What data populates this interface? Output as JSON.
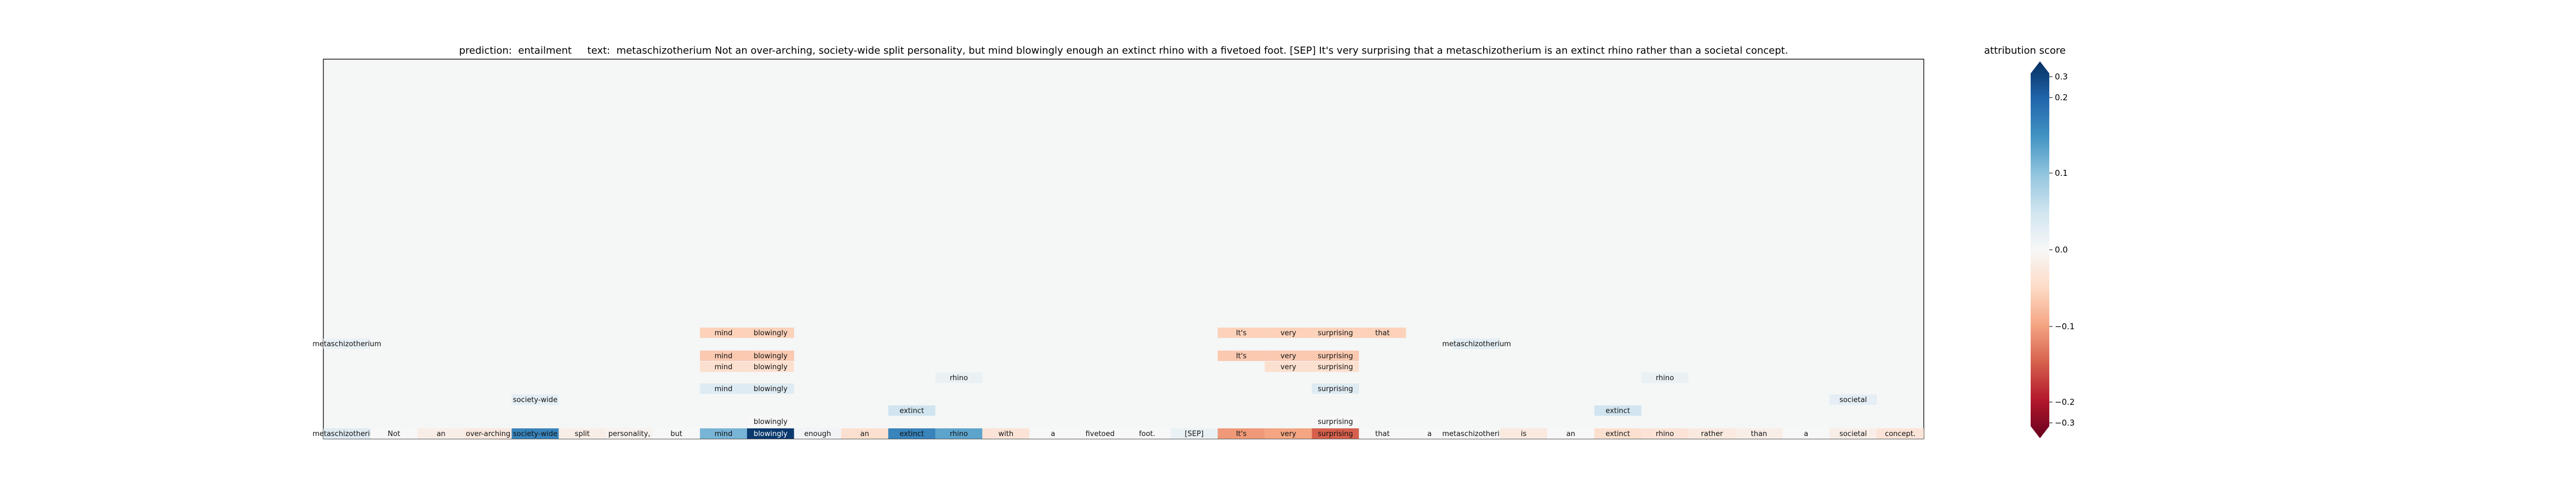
{
  "title": "prediction:  entailment     text:  metaschizotherium Not an over-arching, society-wide split personality, but mind blowingly enough an extinct rhino with a fivetoed foot. [SEP] It's very surprising that a metaschizotherium is an extinct rhino rather than a societal concept.",
  "colorbar": {
    "label": "attribution score",
    "ticks": [
      "0.3",
      "0.2",
      "0.1",
      "0.0",
      "−0.1",
      "−0.2",
      "−0.3"
    ],
    "min": -0.3,
    "max": 0.3,
    "colors_hex": [
      "#67001f",
      "#b2182b",
      "#d6604d",
      "#f4a582",
      "#fddbc7",
      "#f7f7f7",
      "#d1e5f0",
      "#92c5de",
      "#4393c3",
      "#2166ac",
      "#053061"
    ]
  },
  "chart_data": {
    "type": "heatmap",
    "title": "prediction:  entailment     text:  metaschizotherium Not an over-arching, society-wide split personality, but mind blowingly enough an extinct rhino with a fivetoed foot. [SEP] It's very surprising that a metaschizotherium is an extinct rhino rather than a societal concept.",
    "legend": "attribution score",
    "value_range": [
      -0.3,
      0.3
    ],
    "tokens": [
      {
        "text": "metaschizotherium",
        "value": 0.04
      },
      {
        "text": "Not",
        "value": 0.0
      },
      {
        "text": "an",
        "value": -0.02
      },
      {
        "text": "over-arching",
        "value": -0.03
      },
      {
        "text": "society-wide",
        "value": 0.2
      },
      {
        "text": "split",
        "value": -0.02
      },
      {
        "text": "personality,",
        "value": -0.01
      },
      {
        "text": "but",
        "value": 0.0
      },
      {
        "text": "mind",
        "value": 0.14
      },
      {
        "text": "blowingly",
        "value": 0.29
      },
      {
        "text": "enough",
        "value": 0.01
      },
      {
        "text": "an",
        "value": -0.05
      },
      {
        "text": "extinct",
        "value": 0.2
      },
      {
        "text": "rhino",
        "value": 0.16
      },
      {
        "text": "with",
        "value": -0.04
      },
      {
        "text": "a",
        "value": 0.0
      },
      {
        "text": "fivetoed",
        "value": 0.0
      },
      {
        "text": "foot.",
        "value": 0.0
      },
      {
        "text": "[SEP]",
        "value": 0.02
      },
      {
        "text": "It's",
        "value": -0.13
      },
      {
        "text": "very",
        "value": -0.12
      },
      {
        "text": "surprising",
        "value": -0.18
      },
      {
        "text": "that",
        "value": 0.0
      },
      {
        "text": "a",
        "value": 0.0
      },
      {
        "text": "metaschizotherium",
        "value": 0.0
      },
      {
        "text": "is",
        "value": -0.03
      },
      {
        "text": "an",
        "value": 0.0
      },
      {
        "text": "extinct",
        "value": -0.05
      },
      {
        "text": "rhino",
        "value": -0.04
      },
      {
        "text": "rather",
        "value": -0.03
      },
      {
        "text": "than",
        "value": -0.02
      },
      {
        "text": "a",
        "value": 0.0
      },
      {
        "text": "societal",
        "value": -0.02
      },
      {
        "text": "concept.",
        "value": -0.04
      }
    ],
    "rows": [
      [
        {
          "token": 0,
          "text": "metaschizotherium",
          "value": 0.02
        },
        {
          "token": 24,
          "text": "metaschizotherium",
          "value": 0.03
        }
      ],
      [
        {
          "token": 8,
          "text": "mind",
          "value": -0.07
        },
        {
          "token": 9,
          "text": "blowingly",
          "value": -0.07
        },
        {
          "token": 19,
          "text": "It's",
          "value": -0.07
        },
        {
          "token": 20,
          "text": "very",
          "value": -0.07
        },
        {
          "token": 21,
          "text": "surprising",
          "value": -0.07
        },
        {
          "token": 22,
          "text": "that",
          "value": -0.07
        }
      ],
      [],
      [
        {
          "token": 8,
          "text": "mind",
          "value": -0.08
        },
        {
          "token": 9,
          "text": "blowingly",
          "value": -0.08
        },
        {
          "token": 19,
          "text": "It's",
          "value": -0.08
        },
        {
          "token": 20,
          "text": "very",
          "value": -0.08
        },
        {
          "token": 21,
          "text": "surprising",
          "value": -0.08
        }
      ],
      [
        {
          "token": 8,
          "text": "mind",
          "value": -0.05
        },
        {
          "token": 9,
          "text": "blowingly",
          "value": -0.05
        },
        {
          "token": 20,
          "text": "very",
          "value": -0.05
        },
        {
          "token": 21,
          "text": "surprising",
          "value": -0.05
        }
      ],
      [
        {
          "token": 13,
          "text": "rhino",
          "value": 0.02
        },
        {
          "token": 28,
          "text": "rhino",
          "value": 0.02
        }
      ],
      [
        {
          "token": 8,
          "text": "mind",
          "value": 0.04
        },
        {
          "token": 9,
          "text": "blowingly",
          "value": 0.04
        },
        {
          "token": 21,
          "text": "surprising",
          "value": 0.04
        }
      ],
      [
        {
          "token": 4,
          "text": "society-wide",
          "value": 0.03
        },
        {
          "token": 32,
          "text": "societal",
          "value": 0.03
        }
      ],
      [
        {
          "token": 12,
          "text": "extinct",
          "value": 0.06
        },
        {
          "token": 27,
          "text": "extinct",
          "value": 0.06
        }
      ],
      [
        {
          "token": 9,
          "text": "blowingly",
          "value": 0.0
        },
        {
          "token": 21,
          "text": "surprising",
          "value": 0.0
        }
      ]
    ]
  }
}
